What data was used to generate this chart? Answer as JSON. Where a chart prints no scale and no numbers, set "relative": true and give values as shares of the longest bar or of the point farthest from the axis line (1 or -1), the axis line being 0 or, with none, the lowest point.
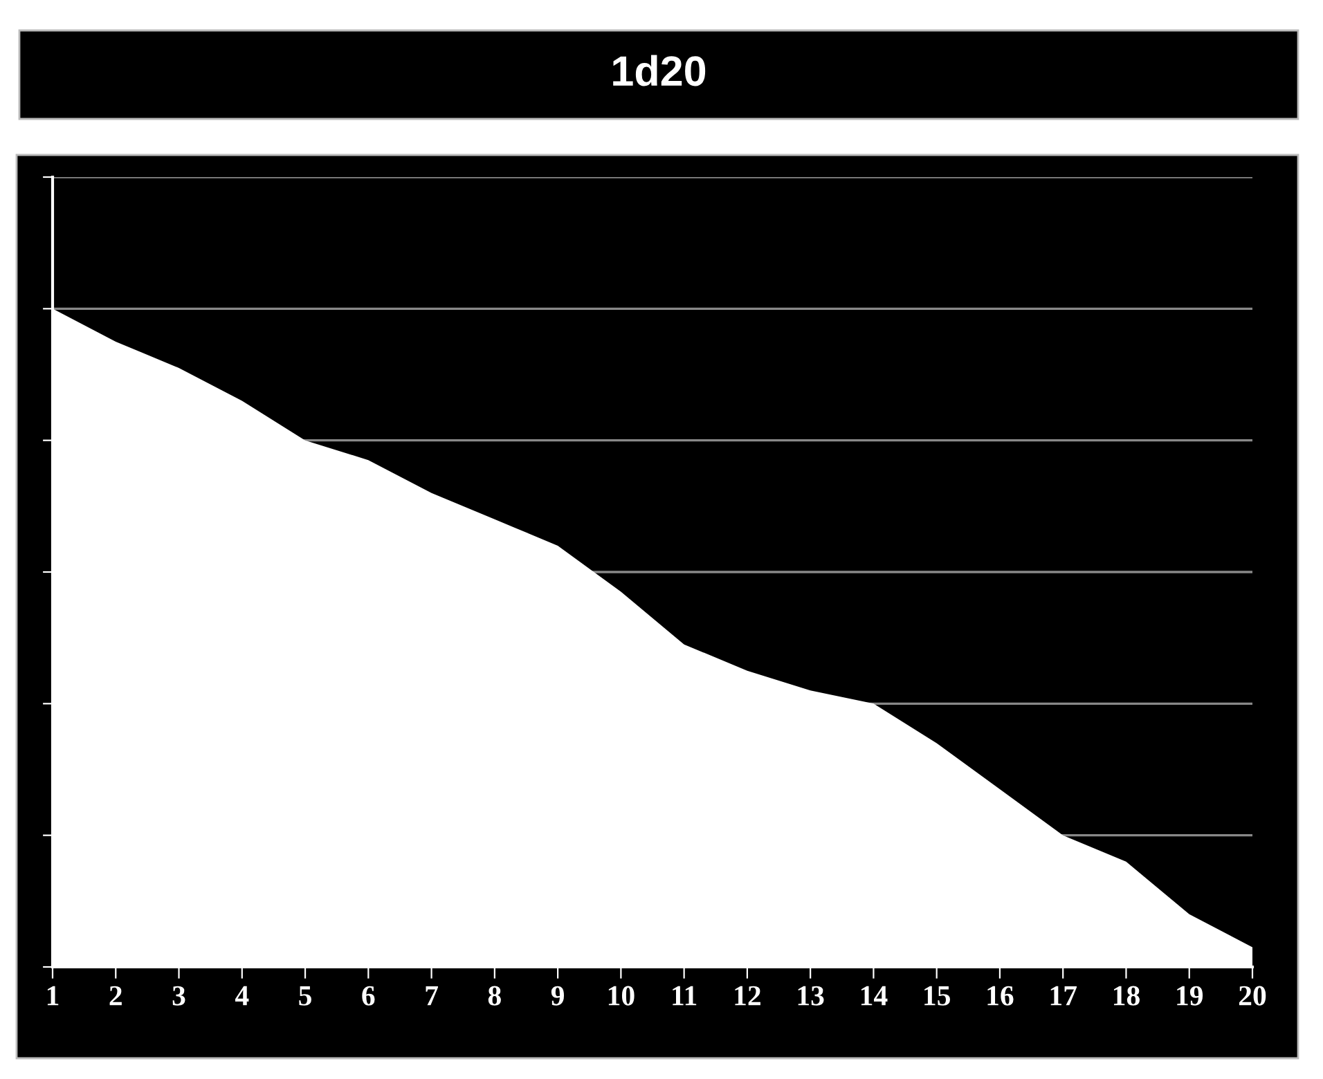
{
  "chart_data": {
    "type": "area",
    "title": "1d20",
    "relative": true,
    "grid": "y",
    "tick_labels": "x",
    "categories": [
      "1",
      "2",
      "3",
      "4",
      "5",
      "6",
      "7",
      "8",
      "9",
      "10",
      "11",
      "12",
      "13",
      "14",
      "15",
      "16",
      "17",
      "18",
      "19",
      "20"
    ],
    "series": [
      {
        "color": "#ffffff",
        "values": [
          1.0,
          0.95,
          0.91,
          0.86,
          0.8,
          0.77,
          0.72,
          0.68,
          0.64,
          0.57,
          0.49,
          0.45,
          0.42,
          0.4,
          0.34,
          0.27,
          0.2,
          0.16,
          0.08,
          0.03
        ]
      }
    ]
  }
}
